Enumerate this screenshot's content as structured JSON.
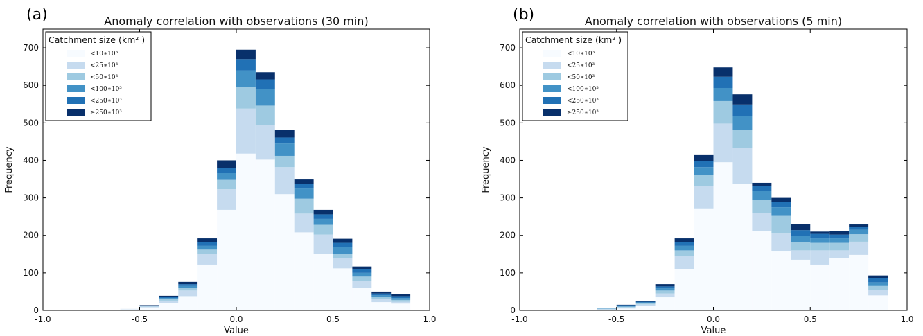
{
  "colors": [
    "#f7fbff",
    "#c6dbef",
    "#9ecae1",
    "#4292c6",
    "#2171b5",
    "#08306b"
  ],
  "chart_data": [
    {
      "type": "bar",
      "panel_label": "(a)",
      "title": "Anomaly correlation with observations (30 min)",
      "xlabel": "Value",
      "ylabel": "Frequency",
      "xlim": [
        -1.0,
        1.0
      ],
      "ylim": [
        0,
        750
      ],
      "xticks": [
        "-1.0",
        "-0.5",
        "0.0",
        "0.5",
        "1.0"
      ],
      "yticks": [
        "0",
        "100",
        "200",
        "300",
        "400",
        "500",
        "600",
        "700"
      ],
      "stacked": true,
      "legend_title": "Catchment size (km² )",
      "legend_placement": "upper-left",
      "bin_edges": [
        -1.0,
        -0.9,
        -0.8,
        -0.7,
        -0.6,
        -0.5,
        -0.4,
        -0.3,
        -0.2,
        -0.1,
        0.0,
        0.1,
        0.2,
        0.3,
        0.4,
        0.5,
        0.6,
        0.7,
        0.8,
        0.9,
        1.0
      ],
      "series": [
        {
          "name": "<10∗10³",
          "values": [
            0,
            0,
            0,
            1,
            3,
            8,
            20,
            38,
            122,
            268,
            418,
            402,
            310,
            208,
            150,
            112,
            60,
            22,
            18,
            0
          ]
        },
        {
          "name": "<25∗10³",
          "values": [
            0,
            0,
            0,
            0,
            1,
            2,
            6,
            15,
            28,
            55,
            120,
            92,
            72,
            50,
            52,
            27,
            18,
            8,
            5,
            0
          ]
        },
        {
          "name": "<50∗10³",
          "values": [
            0,
            0,
            0,
            0,
            0,
            1,
            4,
            6,
            12,
            25,
            57,
            52,
            30,
            40,
            26,
            12,
            12,
            5,
            5,
            0
          ]
        },
        {
          "name": "<100∗10³",
          "values": [
            0,
            0,
            0,
            0,
            0,
            1,
            3,
            6,
            10,
            18,
            45,
            45,
            33,
            27,
            16,
            18,
            10,
            5,
            5,
            0
          ]
        },
        {
          "name": "<250∗10³",
          "values": [
            0,
            0,
            0,
            0,
            0,
            1,
            3,
            5,
            10,
            14,
            30,
            25,
            16,
            12,
            12,
            11,
            10,
            5,
            5,
            0
          ]
        },
        {
          "name": "≥250∗10³",
          "values": [
            0,
            0,
            0,
            0,
            0,
            1,
            3,
            6,
            10,
            20,
            25,
            19,
            21,
            12,
            12,
            11,
            7,
            5,
            5,
            0
          ]
        }
      ]
    },
    {
      "type": "bar",
      "panel_label": "(b)",
      "title": "Anomaly correlation with observations (5 min)",
      "xlabel": "Value",
      "ylabel": "Frequency",
      "xlim": [
        -1.0,
        1.0
      ],
      "ylim": [
        0,
        750
      ],
      "xticks": [
        "-1.0",
        "-0.5",
        "0.0",
        "0.5",
        "1.0"
      ],
      "yticks": [
        "0",
        "100",
        "200",
        "300",
        "400",
        "500",
        "600",
        "700"
      ],
      "stacked": true,
      "legend_title": "Catchment size (km² )",
      "legend_placement": "upper-left",
      "bin_edges": [
        -1.0,
        -0.9,
        -0.8,
        -0.7,
        -0.6,
        -0.5,
        -0.4,
        -0.3,
        -0.2,
        -0.1,
        0.0,
        0.1,
        0.2,
        0.3,
        0.4,
        0.5,
        0.6,
        0.7,
        0.8,
        0.9,
        1.0
      ],
      "series": [
        {
          "name": "<10∗10³",
          "values": [
            0,
            0,
            0,
            0,
            2,
            5,
            12,
            35,
            110,
            272,
            395,
            337,
            212,
            157,
            135,
            122,
            140,
            148,
            40,
            0
          ]
        },
        {
          "name": "<25∗10³",
          "values": [
            0,
            0,
            0,
            0,
            1,
            3,
            4,
            10,
            35,
            60,
            103,
            97,
            47,
            48,
            25,
            38,
            20,
            35,
            15,
            0
          ]
        },
        {
          "name": "<50∗10³",
          "values": [
            0,
            0,
            0,
            0,
            1,
            2,
            3,
            8,
            15,
            30,
            60,
            47,
            35,
            47,
            22,
            20,
            20,
            20,
            10,
            0
          ]
        },
        {
          "name": "<100∗10³",
          "values": [
            0,
            0,
            0,
            0,
            1,
            2,
            2,
            6,
            12,
            20,
            35,
            38,
            25,
            23,
            17,
            12,
            12,
            12,
            10,
            0
          ]
        },
        {
          "name": "<250∗10³",
          "values": [
            0,
            0,
            0,
            0,
            0,
            2,
            2,
            5,
            10,
            16,
            30,
            30,
            12,
            15,
            15,
            12,
            10,
            8,
            10,
            0
          ]
        },
        {
          "name": "≥250∗10³",
          "values": [
            0,
            0,
            0,
            0,
            0,
            1,
            2,
            6,
            10,
            16,
            25,
            27,
            9,
            10,
            16,
            6,
            10,
            6,
            8,
            0
          ]
        }
      ]
    }
  ]
}
